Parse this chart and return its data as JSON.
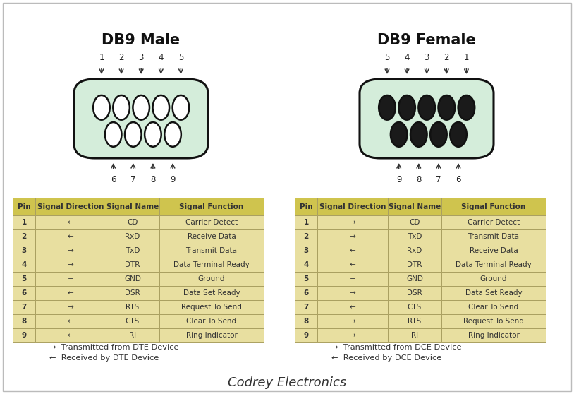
{
  "title_male": "DB9 Male",
  "title_female": "DB9 Female",
  "footer": "Codrey Electronics",
  "bg_color": "#ffffff",
  "connector_fill": "#d4edda",
  "connector_stroke": "#111111",
  "table_bg_header": "#cfc44e",
  "table_bg_row": "#e8dfa0",
  "table_border": "#aaa060",
  "table_text": "#333333",
  "male_top_pins": [
    "1",
    "2",
    "3",
    "4",
    "5"
  ],
  "male_bottom_pins": [
    "6",
    "7",
    "8",
    "9"
  ],
  "female_top_pins": [
    "5",
    "4",
    "3",
    "2",
    "1"
  ],
  "female_bottom_pins": [
    "9",
    "8",
    "7",
    "6"
  ],
  "dte_table": [
    [
      "1",
      "←",
      "CD",
      "Carrier Detect"
    ],
    [
      "2",
      "←",
      "RxD",
      "Receive Data"
    ],
    [
      "3",
      "→",
      "TxD",
      "Transmit Data"
    ],
    [
      "4",
      "→",
      "DTR",
      "Data Terminal Ready"
    ],
    [
      "5",
      "−",
      "GND",
      "Ground"
    ],
    [
      "6",
      "←",
      "DSR",
      "Data Set Ready"
    ],
    [
      "7",
      "→",
      "RTS",
      "Request To Send"
    ],
    [
      "8",
      "←",
      "CTS",
      "Clear To Send"
    ],
    [
      "9",
      "←",
      "RI",
      "Ring Indicator"
    ]
  ],
  "dce_table": [
    [
      "1",
      "→",
      "CD",
      "Carrier Detect"
    ],
    [
      "2",
      "→",
      "TxD",
      "Transmit Data"
    ],
    [
      "3",
      "←",
      "RxD",
      "Receive Data"
    ],
    [
      "4",
      "←",
      "DTR",
      "Data Terminal Ready"
    ],
    [
      "5",
      "−",
      "GND",
      "Ground"
    ],
    [
      "6",
      "→",
      "DSR",
      "Data Set Ready"
    ],
    [
      "7",
      "←",
      "CTS",
      "Clear To Send"
    ],
    [
      "8",
      "→",
      "RTS",
      "Request To Send"
    ],
    [
      "9",
      "→",
      "RI",
      "Ring Indicator"
    ]
  ],
  "legend_dte": [
    "→  Transmitted from DTE Device",
    "←  Received by DTE Device"
  ],
  "legend_dce": [
    "→  Transmitted from DCE Device",
    "←  Received by DCE Device"
  ]
}
